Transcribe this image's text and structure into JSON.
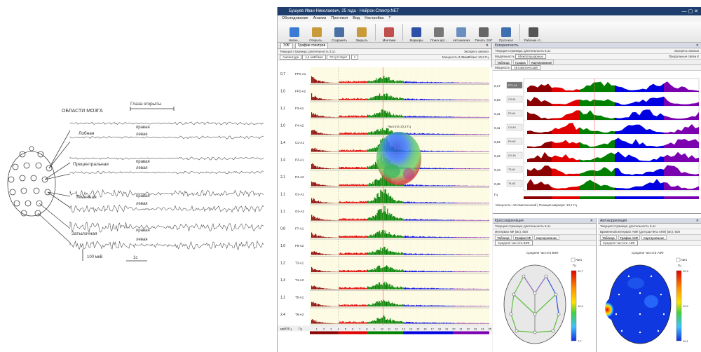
{
  "diagram": {
    "title": "ОБЛАСТИ МОЗГА",
    "eyes_open": "Глаза открыты",
    "regions": [
      "Лобная",
      "Прецентральная",
      "Теменная",
      "Затылочная"
    ],
    "right_label": "правая",
    "left_label": "левая",
    "scale_voltage": "100 мкВ",
    "scale_time": "1с"
  },
  "window": {
    "title": "Бушуев Иван Николаевич, 25 года - Нейрон-Спектр.NET",
    "controls": "—  ▢  ✕"
  },
  "menu": [
    "Обследование",
    "Анализ",
    "Протокол",
    "Вид",
    "Настройка",
    "?"
  ],
  "toolbar": [
    {
      "label": "Новое...",
      "icon": "new-document-icon",
      "color": "#3a7bd5"
    },
    {
      "label": "Открыть...",
      "icon": "open-folder-icon",
      "color": "#c89a3a"
    },
    {
      "label": "Сохранить",
      "icon": "save-icon",
      "color": "#4a6fa5"
    },
    {
      "label": "Закрыть",
      "icon": "close-folder-icon",
      "color": "#c89a3a"
    },
    {
      "label": "Монтажи",
      "icon": "montage-icon",
      "color": "#c0504d"
    },
    {
      "label": "Маркеры",
      "icon": "flag-icon",
      "color": "#2c4fa8"
    },
    {
      "label": "Поиск арт...",
      "icon": "search-artifact-icon",
      "color": "#777777"
    },
    {
      "label": "Автоанализ",
      "icon": "autoanalysis-icon",
      "color": "#6a8fbf"
    },
    {
      "label": "Печать ЭЭГ",
      "icon": "print-icon",
      "color": "#666666"
    },
    {
      "label": "Протокол",
      "icon": "protocol-icon",
      "color": "#3f6fb0"
    },
    {
      "label": "Рабочие ст...",
      "icon": "workspace-icon",
      "color": "#555555"
    }
  ],
  "left_panel": {
    "tabs": [
      "ЭЭГ",
      "График спектров"
    ],
    "info": "Текущая страница; длительность 3,1с",
    "info_right": "Экспресс анализ",
    "controls": [
      "Амплитуда",
      "4,4 мкВ²/мкс",
      "Отсутствует",
      "1"
    ],
    "controls_right": "Мощность 0,39мкВ²/мкс  10,2 Гц",
    "peak_label": "Частота 10,2 Гц",
    "scale_values": [
      "0,7",
      "1,0",
      "1,1",
      "1,0",
      "1,4",
      "1,4",
      "2,1",
      "1,1",
      "1,1",
      "0,8",
      "1,0",
      "1,2",
      "1,4",
      "1,1",
      "2,4"
    ],
    "channels": [
      "FP1-A1",
      "FP2-A2",
      "F3-A1",
      "F4-A2",
      "C3-A1",
      "P3-A1",
      "P4-A2",
      "O1-A1",
      "O2-A2",
      "F7-A1",
      "F8-A2",
      "T3-A1",
      "T4-A2",
      "T5-A1",
      "T6-A2"
    ],
    "freq_ticks": [
      "1",
      "2",
      "3",
      "4",
      "5",
      "6",
      "7",
      "8",
      "9",
      "10",
      "11",
      "12",
      "13",
      "14",
      "15",
      "16",
      "17",
      "18",
      "19",
      "20",
      "21",
      "22",
      "23",
      "24",
      "25"
    ],
    "unit": "Гц",
    "axis_unit": "мкВ²/Гц"
  },
  "coherence_panel": {
    "title": "Когерентность",
    "info": "Текущая страница; длительность 6,1с",
    "info_right": "Экспресс анализ",
    "mode_label": "Модальность",
    "mode_value": "Межполушарные",
    "type_label": "Продольные связи К",
    "subtabs": [
      "Таблица",
      "График",
      "Картирование"
    ],
    "measure_label": "Мощность",
    "measure_value": "Автоматический",
    "scale_values": [
      "0,17",
      "0,03",
      "0,11",
      "0,11",
      "0,02",
      "0,12",
      "0,13",
      "0,26"
    ],
    "channels": [
      "FP1-A1",
      "C3-A1",
      "F3-A1",
      "C4-A2",
      "P4-A2",
      "O1-A1",
      "T3-A1",
      "T4-A2"
    ],
    "footer": "Мощность: Автоматический  |  Позиция маркера: 10,1 Гц",
    "unit": "Гц"
  },
  "cross_panel": {
    "title": "Кросскорреляция",
    "info": "Текущая страница; длительность 6,1с",
    "info_right": "Экспресс анализ",
    "interval": "Интервал КФ (мс): 500",
    "subtabs": [
      "Таблица",
      "График КФ",
      "Картирование"
    ],
    "select": "Средняя частота ВКФ",
    "map_title": "Средняя частота ВКФ",
    "auto": "Авто",
    "unit": "Гц",
    "scale_top": "12,7",
    "scale_mid": "10,2",
    "scale_bot": "7,7"
  },
  "auto_panel": {
    "title": "Автокорреляция",
    "info": "Текущая страница; длительность 6,1с",
    "info_right": "Экспресс анализ",
    "interval": "Временной интервал АКФ (для расчёта АКФ) (мс): 500",
    "subtabs": [
      "Таблица",
      "График АКФ",
      "Картирование"
    ],
    "select": "Средняя частота АКФ",
    "map_title": "Средняя частота АКФ",
    "auto": "Авто",
    "unit": "Гц",
    "scale_top": "10,3",
    "scale_mid": "10,2",
    "scale_bot": "10,1"
  },
  "colors": {
    "delta": "#8b0000",
    "theta": "#e00000",
    "alpha": "#008000",
    "beta1": "#0000e0",
    "beta2": "#7a00b0",
    "panel_bg": "#fdfbe3",
    "title_bar": "#1e3f6d"
  }
}
